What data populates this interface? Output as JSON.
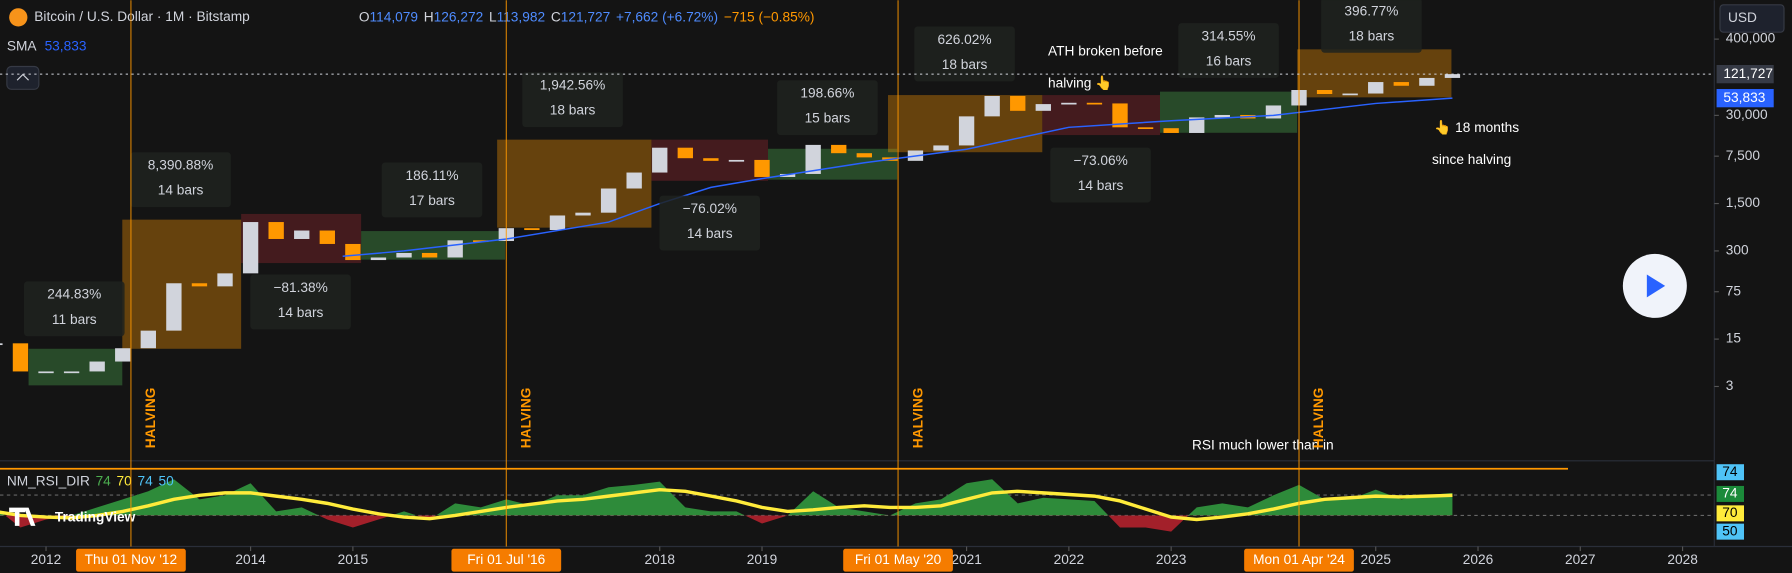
{
  "header": {
    "symbol": "Bitcoin / U.S. Dollar · 1M · Bitstamp",
    "ohlc": [
      {
        "k": "O",
        "v": "114,079"
      },
      {
        "k": "H",
        "v": "126,272"
      },
      {
        "k": "L",
        "v": "113,982"
      },
      {
        "k": "C",
        "v": "121,727"
      }
    ],
    "change": "+7,662 (+6.72%)",
    "change_last": "−715 (−0.85%)",
    "sma_label": "SMA",
    "sma_value": "53,833"
  },
  "currency": "USD",
  "logo": "TradingView",
  "chart_data": {
    "type": "candlestick",
    "log": true,
    "x": [
      2011.5,
      2011.75,
      2012,
      2012.25,
      2012.5,
      2012.75,
      2013,
      2013.25,
      2013.5,
      2013.75,
      2014,
      2014.25,
      2014.5,
      2014.75,
      2015,
      2015.25,
      2015.5,
      2015.75,
      2016,
      2016.25,
      2016.5,
      2016.75,
      2017,
      2017.25,
      2017.5,
      2017.75,
      2018,
      2018.25,
      2018.5,
      2018.75,
      2019,
      2019.25,
      2019.5,
      2019.75,
      2020,
      2020.25,
      2020.5,
      2020.75,
      2021,
      2021.25,
      2021.5,
      2021.75,
      2022,
      2022.25,
      2022.5,
      2022.75,
      2023,
      2023.25,
      2023.5,
      2023.75,
      2024,
      2024.25,
      2024.5,
      2024.75,
      2025,
      2025.25,
      2025.5,
      2025.75
    ],
    "close": [
      13,
      5,
      5,
      5,
      7,
      11,
      20,
      100,
      90,
      140,
      800,
      450,
      600,
      380,
      220,
      240,
      280,
      240,
      430,
      420,
      650,
      610,
      1000,
      1100,
      2500,
      4300,
      10000,
      7000,
      6400,
      6600,
      3700,
      4100,
      11000,
      8300,
      7200,
      6400,
      9100,
      10800,
      29000,
      58000,
      35000,
      44000,
      46000,
      45000,
      20000,
      19400,
      16500,
      28000,
      30400,
      27000,
      42000,
      71000,
      62000,
      63000,
      93000,
      82000,
      107000,
      121727
    ],
    "candle_color_up": "#d1d4dc",
    "candle_color_down": "#ff9800",
    "sma": {
      "color": "#2962ff",
      "x": [
        2014.9,
        2015.5,
        2016.5,
        2017.5,
        2018,
        2018.5,
        2019,
        2020,
        2021,
        2022,
        2023,
        2024,
        2025,
        2025.75
      ],
      "values": [
        250,
        300,
        450,
        800,
        1500,
        2600,
        3500,
        6000,
        9500,
        20000,
        25000,
        30000,
        45000,
        53833
      ]
    },
    "xlim": [
      2011.55,
      2028.31
    ],
    "ylim": [
      0.27,
      1500000
    ],
    "xticks": [
      2012,
      2014,
      2015,
      2018,
      2019,
      2021,
      2022,
      2023,
      2025,
      2026,
      2027,
      2028
    ],
    "yticks": [
      3,
      15,
      75,
      300,
      {
        "value": 1500,
        "label": "1,500"
      },
      {
        "value": 7500,
        "label": "7,500"
      },
      {
        "value": 30000,
        "label": "30,000"
      },
      {
        "value": 400000,
        "label": "400,000"
      }
    ],
    "price_labels": [
      {
        "value": 121727,
        "label": "121,727",
        "color": "#363a45"
      },
      {
        "value": 53833,
        "label": "53,833",
        "color": "#2962ff"
      }
    ],
    "boxes": [
      {
        "change": "244.83%",
        "bars": "11 bars"
      },
      {
        "change": "8,390.88%",
        "bars": "14 bars"
      },
      {
        "change": "−81.38%",
        "bars": "14 bars"
      },
      {
        "change": "186.11%",
        "bars": "17 bars"
      },
      {
        "change": "1,942.56%",
        "bars": "18 bars"
      },
      {
        "change": "−76.02%",
        "bars": "14 bars"
      },
      {
        "change": "198.66%",
        "bars": "15 bars"
      },
      {
        "change": "626.02%",
        "bars": "18 bars"
      },
      {
        "change": "−73.06%",
        "bars": "14 bars"
      },
      {
        "change": "314.55%",
        "bars": "16 bars"
      },
      {
        "change": "396.77%",
        "bars": "18 bars"
      }
    ],
    "halvings": [
      {
        "x": 2012.83,
        "label": "HALVING",
        "date": "Thu 01 Nov '12"
      },
      {
        "x": 2016.5,
        "label": "HALVING",
        "date": "Fri 01 Jul '16"
      },
      {
        "x": 2020.33,
        "label": "HALVING",
        "date": "Fri 01 May '20"
      },
      {
        "x": 2024.25,
        "label": "HALVING",
        "date": "Mon 01 Apr '24"
      }
    ],
    "annotations": [
      "ATH broken before",
      "halving 👆",
      "👆 18 months",
      "since halving",
      "RSI much lower than in"
    ],
    "rsi": {
      "name": "NM_RSI_DIR",
      "params": [
        "74",
        "70",
        "74",
        "50"
      ],
      "ylim": [
        20,
        115
      ],
      "values": [
        60,
        35,
        45,
        50,
        60,
        70,
        80,
        95,
        70,
        75,
        90,
        55,
        60,
        45,
        35,
        45,
        55,
        45,
        65,
        60,
        70,
        62,
        75,
        75,
        85,
        88,
        92,
        60,
        55,
        55,
        40,
        50,
        80,
        60,
        55,
        50,
        65,
        70,
        90,
        95,
        65,
        72,
        70,
        68,
        35,
        35,
        30,
        60,
        65,
        60,
        75,
        88,
        70,
        70,
        82,
        70,
        75,
        78
      ],
      "ma": [
        55,
        50,
        48,
        47,
        50,
        55,
        62,
        70,
        75,
        78,
        78,
        74,
        70,
        65,
        58,
        52,
        48,
        46,
        50,
        55,
        60,
        64,
        68,
        70,
        74,
        78,
        82,
        80,
        74,
        68,
        60,
        55,
        57,
        60,
        62,
        60,
        60,
        62,
        70,
        78,
        80,
        78,
        76,
        74,
        68,
        58,
        48,
        45,
        48,
        52,
        58,
        65,
        70,
        72,
        74,
        73,
        74,
        75
      ],
      "level_labels": [
        "74",
        "74",
        "70",
        "50"
      ]
    }
  }
}
